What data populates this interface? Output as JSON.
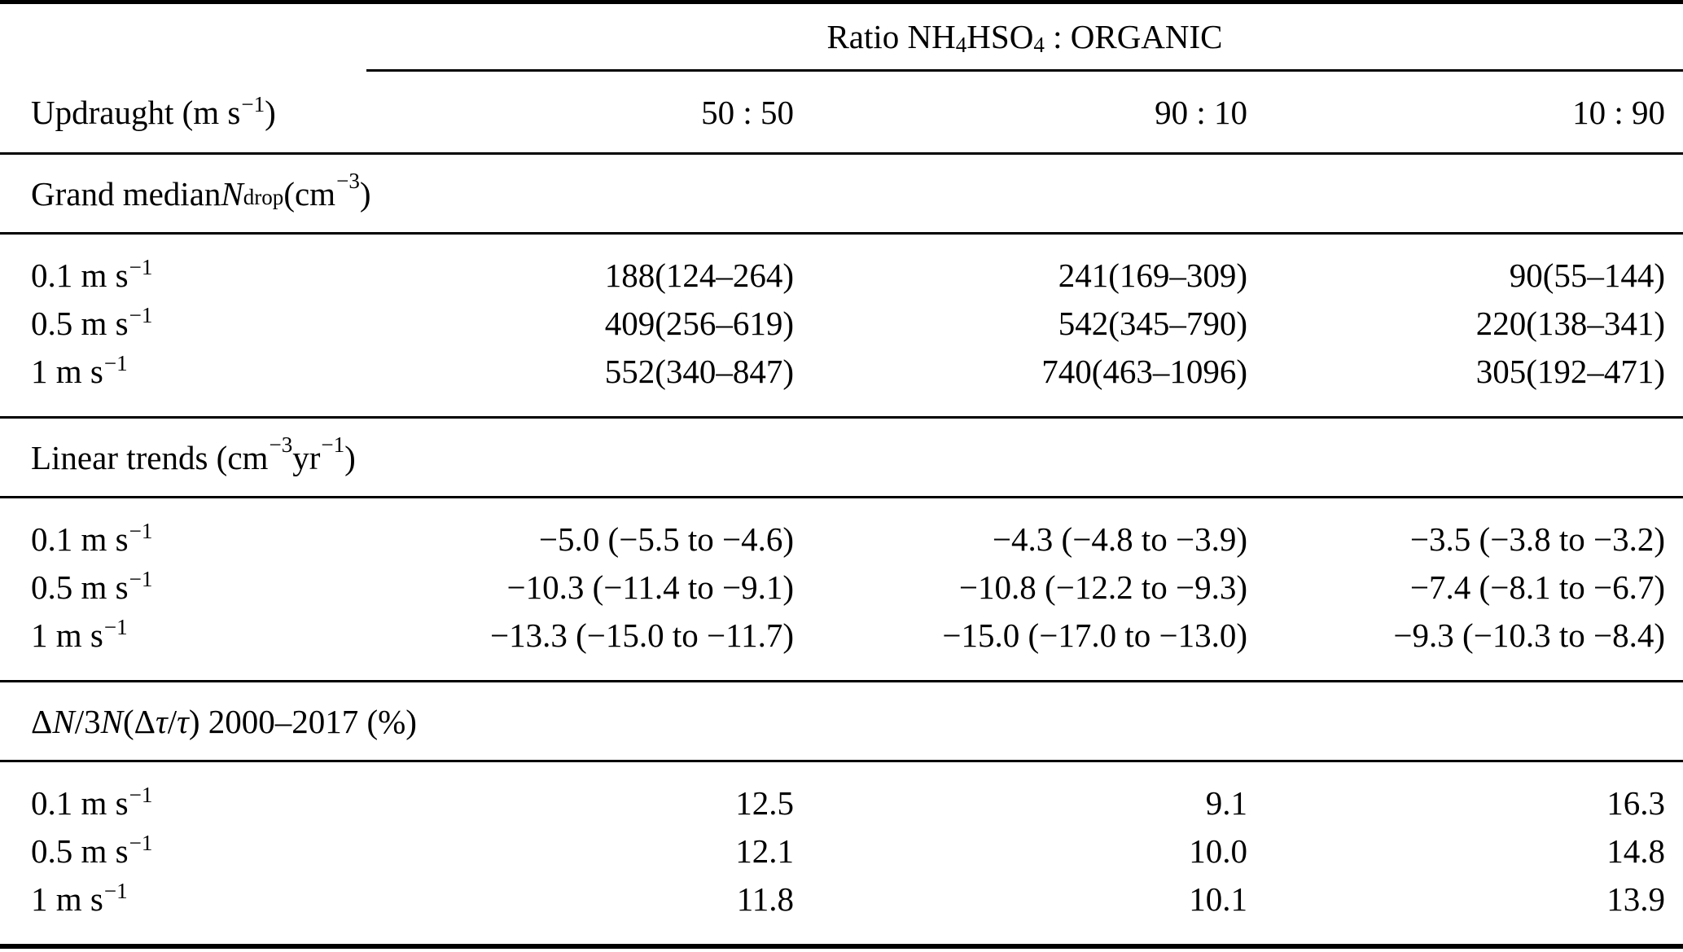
{
  "table": {
    "top_header": {
      "ratio_title": "Ratio NH_{4}HSO_{4} : ORGANIC",
      "row_label_header": "Updraught (m s^{−1})",
      "columns": [
        "50 : 50",
        "90 : 10",
        "10 : 90"
      ]
    },
    "sections": [
      {
        "title": "Grand median *N*_{drop} (cm^{−3})",
        "rows": [
          {
            "label": "0.1 m s^{−1}",
            "values": [
              "188(124–264)",
              "241(169–309)",
              "90(55–144)"
            ]
          },
          {
            "label": "0.5 m s^{−1}",
            "values": [
              "409(256–619)",
              "542(345–790)",
              "220(138–341)"
            ]
          },
          {
            "label": "1 m s^{−1}",
            "values": [
              "552(340–847)",
              "740(463–1096)",
              "305(192–471)"
            ]
          }
        ]
      },
      {
        "title": "Linear trends (cm^{−3} yr^{−1})",
        "rows": [
          {
            "label": "0.1 m s^{−1}",
            "values": [
              "−5.0 (−5.5 to −4.6)",
              "−4.3 (−4.8 to −3.9)",
              "−3.5 (−3.8 to −3.2)"
            ]
          },
          {
            "label": "0.5 m s^{−1}",
            "values": [
              "−10.3 (−11.4 to −9.1)",
              "−10.8 (−12.2 to −9.3)",
              "−7.4 (−8.1 to −6.7)"
            ]
          },
          {
            "label": "1 m s^{−1}",
            "values": [
              "−13.3 (−15.0 to −11.7)",
              "−15.0 (−17.0 to −13.0)",
              "−9.3 (−10.3 to −8.4)"
            ]
          }
        ]
      },
      {
        "title": "Δ*N*/3*N* (Δ*τ*/*τ*) 2000–2017 (%)",
        "rows": [
          {
            "label": "0.1 m s^{−1}",
            "values": [
              "12.5",
              "9.1",
              "16.3"
            ]
          },
          {
            "label": "0.5 m s^{−1}",
            "values": [
              "12.1",
              "10.0",
              "14.8"
            ]
          },
          {
            "label": "1 m s^{−1}",
            "values": [
              "11.8",
              "10.1",
              "13.9"
            ]
          }
        ]
      }
    ],
    "colors": {
      "text": "#000000",
      "background": "#ffffff",
      "rule": "#000000"
    }
  }
}
